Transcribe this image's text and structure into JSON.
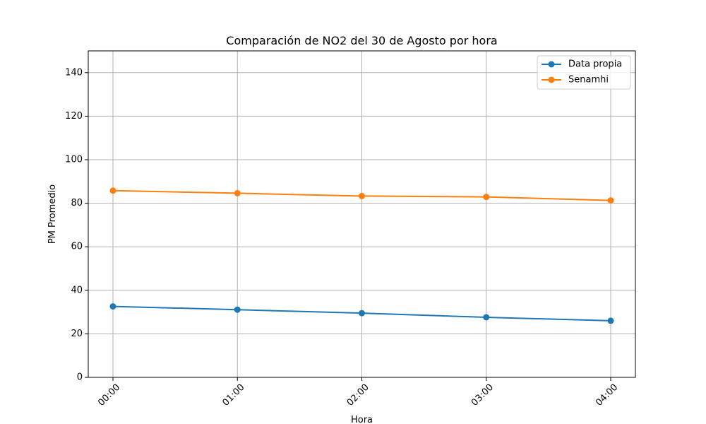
{
  "chart_data": {
    "type": "line",
    "title": "Comparación de NO2 del 30 de Agosto por hora",
    "xlabel": "Hora",
    "ylabel": "PM Promedio",
    "categories": [
      "00:00",
      "01:00",
      "02:00",
      "03:00",
      "04:00"
    ],
    "ylim": [
      0,
      150
    ],
    "yticks": [
      0,
      20,
      40,
      60,
      80,
      100,
      120,
      140
    ],
    "grid": true,
    "legend_position": "top-right",
    "series": [
      {
        "name": "Data propia",
        "color": "#1f77b4",
        "marker": "circle",
        "values": [
          32.6,
          31.1,
          29.5,
          27.6,
          26.0
        ]
      },
      {
        "name": "Senamhi",
        "color": "#ff7f0e",
        "marker": "circle",
        "values": [
          85.8,
          84.6,
          83.3,
          82.9,
          81.3
        ]
      }
    ]
  }
}
